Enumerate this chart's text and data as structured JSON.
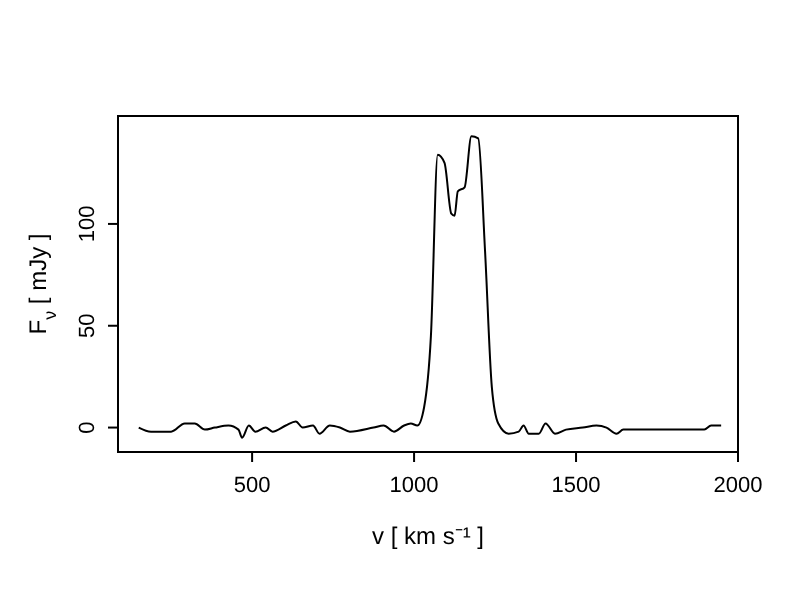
{
  "chart_data": {
    "type": "line",
    "xlabel": "v [ km s⁻¹ ]",
    "ylabel": "F$_{ν}$ [ mJy ]",
    "x": [
      150,
      188,
      250,
      292,
      323,
      354,
      385,
      427,
      458,
      469,
      490,
      510,
      542,
      563,
      604,
      635,
      656,
      688,
      708,
      740,
      771,
      802,
      875,
      906,
      938,
      969,
      990,
      1010,
      1031,
      1052,
      1073,
      1094,
      1115,
      1125,
      1135,
      1156,
      1177,
      1198,
      1219,
      1240,
      1260,
      1292,
      1323,
      1338,
      1354,
      1385,
      1406,
      1435,
      1469,
      1521,
      1563,
      1594,
      1625,
      1646,
      1896,
      1917,
      1948
    ],
    "series": [
      {
        "color": "#000000",
        "values": [
          0,
          -2,
          -2,
          2,
          2,
          -1,
          0,
          1,
          -1,
          -5,
          1,
          -2,
          0,
          -2,
          1,
          3,
          0,
          1,
          -3,
          1,
          0,
          -2,
          0,
          1,
          -2,
          1,
          2,
          1,
          10,
          45,
          134,
          130,
          105,
          104,
          116,
          118,
          143,
          142,
          87,
          20,
          2,
          -3,
          -2,
          1,
          -3,
          -3,
          2,
          -3,
          -1,
          0,
          1,
          0,
          -3,
          -1,
          -1,
          1,
          1
        ]
      }
    ],
    "xlim": [
      86,
      2000
    ],
    "ylim": [
      -12,
      153
    ],
    "xticks": [
      500,
      1000,
      1500,
      2000
    ],
    "yticks": [
      0,
      50,
      100
    ],
    "grid": false,
    "marker": "none",
    "line_style": "solid"
  }
}
